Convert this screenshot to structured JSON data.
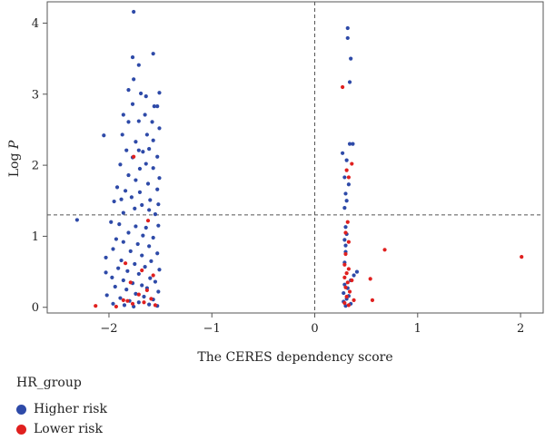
{
  "chart_data": {
    "type": "scatter",
    "xlabel": "The CERES dependency score",
    "ylabel_prefix": "Log ",
    "ylabel_italic": "P",
    "xlim": [
      -2.6,
      2.22
    ],
    "ylim": [
      -0.08,
      4.3
    ],
    "xticks": [
      -2,
      -1,
      0,
      1,
      2
    ],
    "yticks": [
      0,
      1,
      2,
      3,
      4
    ],
    "xtick_labels": [
      "−2",
      "−1",
      "0",
      "1",
      "2"
    ],
    "ytick_labels": [
      "0",
      "1",
      "2",
      "3",
      "4"
    ],
    "threshold_y": 1.3,
    "threshold_x": 0,
    "legend": {
      "title": "HR_group",
      "placement": "bottom-left"
    },
    "series": [
      {
        "name": "Higher risk",
        "color": "#2e4aa8",
        "points": [
          [
            -2.31,
            1.23
          ],
          [
            -1.76,
            4.16
          ],
          [
            -1.57,
            3.57
          ],
          [
            -1.77,
            3.52
          ],
          [
            -1.71,
            3.41
          ],
          [
            -1.81,
            3.06
          ],
          [
            -1.69,
            3.01
          ],
          [
            -1.51,
            3.02
          ],
          [
            -1.76,
            3.21
          ],
          [
            -1.64,
            2.97
          ],
          [
            -1.56,
            2.83
          ],
          [
            -1.53,
            2.83
          ],
          [
            -1.77,
            2.86
          ],
          [
            -2.05,
            2.42
          ],
          [
            -1.86,
            2.71
          ],
          [
            -1.81,
            2.61
          ],
          [
            -1.65,
            2.71
          ],
          [
            -1.51,
            2.52
          ],
          [
            -1.71,
            2.62
          ],
          [
            -1.58,
            2.61
          ],
          [
            -1.87,
            2.43
          ],
          [
            -1.63,
            2.43
          ],
          [
            -1.74,
            2.33
          ],
          [
            -1.57,
            2.35
          ],
          [
            -1.83,
            2.21
          ],
          [
            -1.71,
            2.21
          ],
          [
            -1.67,
            2.19
          ],
          [
            -1.61,
            2.23
          ],
          [
            -1.77,
            2.11
          ],
          [
            -1.53,
            2.12
          ],
          [
            -1.89,
            2.01
          ],
          [
            -1.64,
            2.02
          ],
          [
            -1.7,
            1.95
          ],
          [
            -1.57,
            1.96
          ],
          [
            -1.81,
            1.86
          ],
          [
            -1.51,
            1.82
          ],
          [
            -1.74,
            1.79
          ],
          [
            -1.62,
            1.74
          ],
          [
            -1.92,
            1.69
          ],
          [
            -1.84,
            1.64
          ],
          [
            -1.53,
            1.66
          ],
          [
            -1.7,
            1.62
          ],
          [
            -1.78,
            1.55
          ],
          [
            -1.6,
            1.51
          ],
          [
            -1.95,
            1.49
          ],
          [
            -1.88,
            1.52
          ],
          [
            -1.52,
            1.45
          ],
          [
            -1.68,
            1.44
          ],
          [
            -1.75,
            1.39
          ],
          [
            -1.61,
            1.37
          ],
          [
            -1.86,
            1.33
          ],
          [
            -1.55,
            1.31
          ],
          [
            -1.98,
            1.2
          ],
          [
            -1.9,
            1.17
          ],
          [
            -1.74,
            1.14
          ],
          [
            -1.64,
            1.12
          ],
          [
            -1.52,
            1.15
          ],
          [
            -1.81,
            1.05
          ],
          [
            -1.67,
            1.01
          ],
          [
            -1.93,
            0.96
          ],
          [
            -1.57,
            0.98
          ],
          [
            -1.86,
            0.92
          ],
          [
            -1.72,
            0.89
          ],
          [
            -1.61,
            0.86
          ],
          [
            -1.96,
            0.82
          ],
          [
            -1.79,
            0.79
          ],
          [
            -1.53,
            0.76
          ],
          [
            -1.68,
            0.73
          ],
          [
            -2.03,
            0.7
          ],
          [
            -1.88,
            0.66
          ],
          [
            -1.59,
            0.65
          ],
          [
            -1.75,
            0.61
          ],
          [
            -1.65,
            0.57
          ],
          [
            -1.91,
            0.55
          ],
          [
            -1.51,
            0.53
          ],
          [
            -1.82,
            0.51
          ],
          [
            -2.03,
            0.49
          ],
          [
            -1.71,
            0.47
          ],
          [
            -1.97,
            0.42
          ],
          [
            -1.6,
            0.41
          ],
          [
            -1.86,
            0.38
          ],
          [
            -1.55,
            0.36
          ],
          [
            -1.77,
            0.34
          ],
          [
            -1.68,
            0.31
          ],
          [
            -1.94,
            0.29
          ],
          [
            -1.63,
            0.27
          ],
          [
            -1.83,
            0.25
          ],
          [
            -1.52,
            0.22
          ],
          [
            -1.74,
            0.19
          ],
          [
            -2.02,
            0.17
          ],
          [
            -1.66,
            0.15
          ],
          [
            -1.89,
            0.13
          ],
          [
            -1.57,
            0.11
          ],
          [
            -1.8,
            0.09
          ],
          [
            -1.71,
            0.07
          ],
          [
            -1.96,
            0.05
          ],
          [
            -1.61,
            0.04
          ],
          [
            -1.85,
            0.03
          ],
          [
            -1.53,
            0.02
          ],
          [
            -1.76,
            0.01
          ],
          [
            0.32,
            3.93
          ],
          [
            0.32,
            3.79
          ],
          [
            0.35,
            3.5
          ],
          [
            0.34,
            3.17
          ],
          [
            0.34,
            2.3
          ],
          [
            0.37,
            2.3
          ],
          [
            0.27,
            2.17
          ],
          [
            0.31,
            2.07
          ],
          [
            0.29,
            1.83
          ],
          [
            0.33,
            1.73
          ],
          [
            0.3,
            1.6
          ],
          [
            0.31,
            1.5
          ],
          [
            0.29,
            1.4
          ],
          [
            0.3,
            1.13
          ],
          [
            0.31,
            1.03
          ],
          [
            0.29,
            0.95
          ],
          [
            0.3,
            0.87
          ],
          [
            0.3,
            0.78
          ],
          [
            0.29,
            0.63
          ],
          [
            0.41,
            0.5
          ],
          [
            0.38,
            0.45
          ],
          [
            0.35,
            0.38
          ],
          [
            0.29,
            0.32
          ],
          [
            0.32,
            0.27
          ],
          [
            0.28,
            0.2
          ],
          [
            0.33,
            0.16
          ],
          [
            0.31,
            0.12
          ],
          [
            0.28,
            0.08
          ],
          [
            0.35,
            0.05
          ],
          [
            0.3,
            0.02
          ]
        ]
      },
      {
        "name": "Lower risk",
        "color": "#e0201f",
        "points": [
          [
            0.27,
            3.1
          ],
          [
            0.36,
            2.02
          ],
          [
            0.31,
            1.93
          ],
          [
            0.33,
            1.83
          ],
          [
            0.32,
            1.2
          ],
          [
            0.3,
            1.05
          ],
          [
            0.33,
            0.92
          ],
          [
            0.3,
            0.75
          ],
          [
            0.29,
            0.6
          ],
          [
            0.33,
            0.54
          ],
          [
            0.31,
            0.48
          ],
          [
            0.29,
            0.42
          ],
          [
            0.36,
            0.38
          ],
          [
            0.32,
            0.35
          ],
          [
            0.3,
            0.28
          ],
          [
            0.34,
            0.22
          ],
          [
            0.31,
            0.15
          ],
          [
            0.38,
            0.1
          ],
          [
            0.29,
            0.06
          ],
          [
            0.33,
            0.03
          ],
          [
            0.54,
            0.4
          ],
          [
            0.56,
            0.1
          ],
          [
            0.68,
            0.81
          ],
          [
            2.01,
            0.71
          ],
          [
            -1.76,
            2.12
          ],
          [
            -1.62,
            1.22
          ],
          [
            -1.84,
            0.62
          ],
          [
            -1.68,
            0.52
          ],
          [
            -1.57,
            0.45
          ],
          [
            -1.79,
            0.35
          ],
          [
            -1.63,
            0.24
          ],
          [
            -1.71,
            0.18
          ],
          [
            -1.59,
            0.12
          ],
          [
            -1.86,
            0.1
          ],
          [
            -1.66,
            0.07
          ],
          [
            -1.77,
            0.05
          ],
          [
            -1.55,
            0.03
          ],
          [
            -2.13,
            0.02
          ],
          [
            -1.93,
            0.01
          ],
          [
            -1.82,
            0.09
          ]
        ]
      }
    ]
  }
}
